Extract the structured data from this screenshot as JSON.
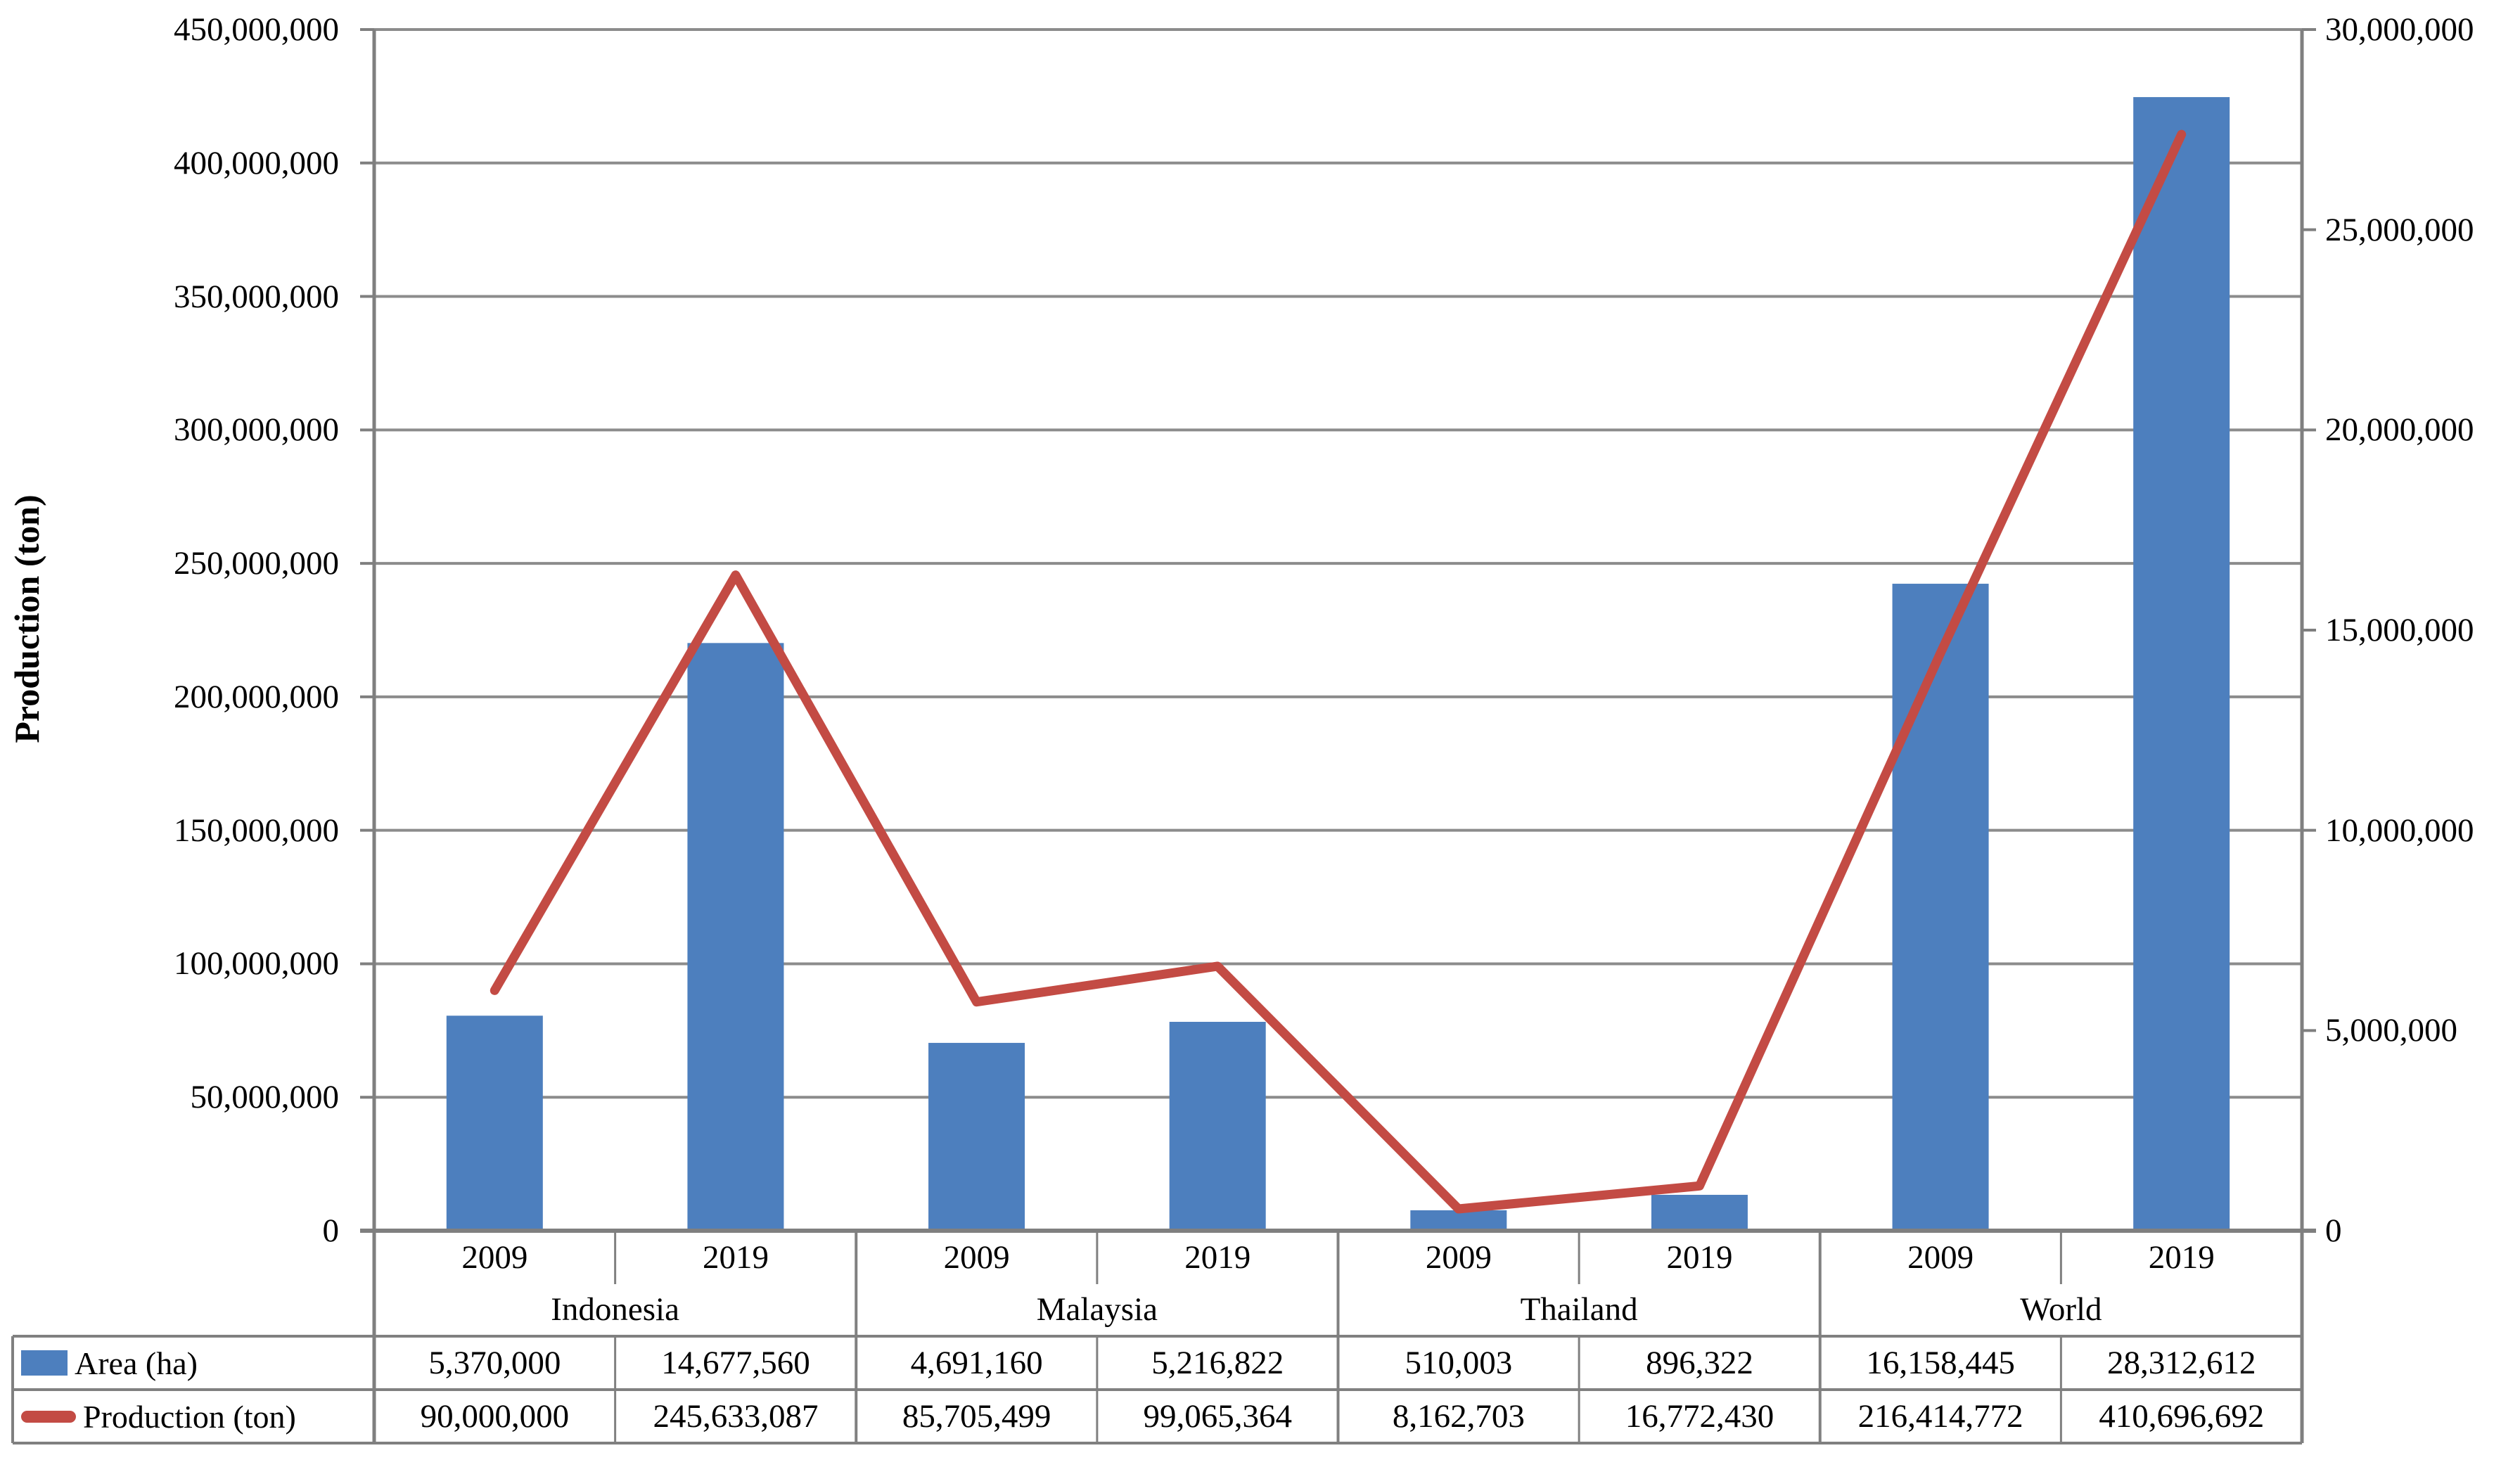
{
  "chart_data": {
    "type": "combo-bar-line",
    "title": "",
    "groups": [
      "Indonesia",
      "Malaysia",
      "Thailand",
      "World"
    ],
    "years": [
      "2009",
      "2019"
    ],
    "categories": [
      "Indonesia 2009",
      "Indonesia 2019",
      "Malaysia 2009",
      "Malaysia 2019",
      "Thailand 2009",
      "Thailand 2019",
      "World 2009",
      "World 2019"
    ],
    "series": [
      {
        "name": "Area (ha)",
        "chart": "bar",
        "axis": "right",
        "color": "#4D7FBE",
        "values": [
          5370000,
          14677560,
          4691160,
          5216822,
          510003,
          896322,
          16158445,
          28312612
        ],
        "labels": [
          "5,370,000",
          "14,677,560",
          "4,691,160",
          "5,216,822",
          "510,003",
          "896,322",
          "16,158,445",
          "28,312,612"
        ]
      },
      {
        "name": "Production (ton)",
        "chart": "line",
        "axis": "left",
        "color": "#C34B44",
        "values": [
          90000000,
          245633087,
          85705499,
          99065364,
          8162703,
          16772430,
          216414772,
          410696692
        ],
        "labels": [
          "90,000,000",
          "245,633,087",
          "85,705,499",
          "99,065,364",
          "8,162,703",
          "16,772,430",
          "216,414,772",
          "410,696,692"
        ]
      }
    ],
    "left_axis": {
      "title": "Production (ton)",
      "min": 0,
      "max": 450000000,
      "step": 50000000,
      "tick_labels": [
        "0",
        "50,000,000",
        "100,000,000",
        "150,000,000",
        "200,000,000",
        "250,000,000",
        "300,000,000",
        "350,000,000",
        "400,000,000",
        "450,000,000"
      ]
    },
    "right_axis": {
      "min": 0,
      "max": 30000000,
      "step": 5000000,
      "tick_labels": [
        "0",
        "5,000,000",
        "10,000,000",
        "15,000,000",
        "20,000,000",
        "25,000,000",
        "30,000,000"
      ]
    },
    "grid": true,
    "legend_position": "data-table-left",
    "colors": {
      "grid": "#8C8C8C",
      "axis": "#7F7F7F",
      "table_border": "#808080",
      "text": "#000000"
    }
  }
}
